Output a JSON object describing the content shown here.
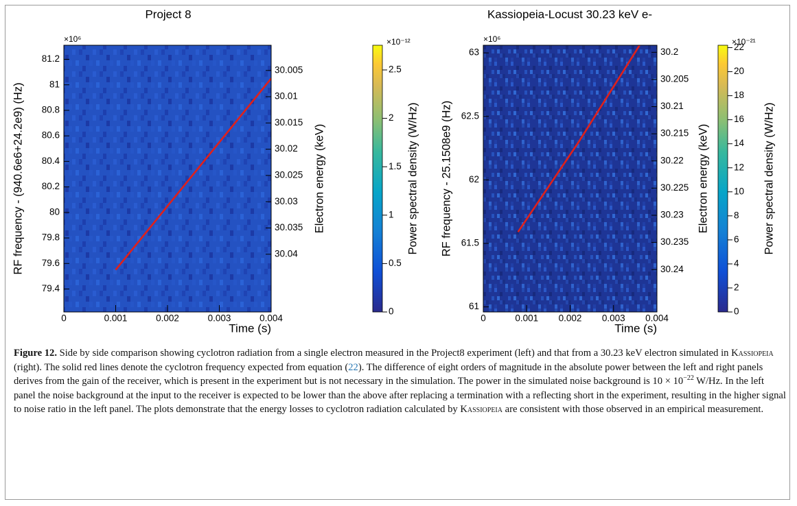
{
  "chart_data": [
    {
      "type": "heatmap",
      "title": "Project 8",
      "xlabel": "Time (s)",
      "ylabel": "RF frequency - (940.6e6+24.2e9) (Hz)",
      "ylabel_multiplier": "×10⁶",
      "y2label": "Electron energy (keV)",
      "colorbar_label": "Power spectral density (W/Hz)",
      "colorbar_multiplier": "×10⁻¹²",
      "xlim": [
        0,
        0.004
      ],
      "xticks": [
        0,
        0.001,
        0.002,
        0.003,
        0.004
      ],
      "ylim": [
        79.22,
        81.31
      ],
      "yticks": [
        79.4,
        79.6,
        79.8,
        80,
        80.2,
        80.4,
        80.6,
        80.8,
        81,
        81.2
      ],
      "y2lim": [
        30.051,
        30.0002
      ],
      "y2ticks": [
        30.005,
        30.01,
        30.015,
        30.02,
        30.025,
        30.03,
        30.035,
        30.04
      ],
      "zlim": [
        0,
        2.755
      ],
      "zticks": [
        0,
        0.5,
        1,
        1.5,
        2,
        2.5
      ],
      "series": [
        {
          "color": "#e0201b",
          "x": [
            0.001,
            0.004
          ],
          "values": [
            79.55,
            81.05
          ]
        }
      ]
    },
    {
      "type": "heatmap",
      "title": "Kassiopeia-Locust 30.23 keV e-",
      "xlabel": "Time (s)",
      "ylabel": "RF frequency - 25.1508e9 (Hz)",
      "ylabel_multiplier": "×10⁶",
      "y2label": "Electron energy (keV)",
      "colorbar_label": "Power spectral density (W/Hz)",
      "colorbar_multiplier": "×10⁻²¹",
      "xlim": [
        0,
        0.004
      ],
      "xticks": [
        0,
        0.001,
        0.002,
        0.003,
        0.004
      ],
      "ylim": [
        60.96,
        63.06
      ],
      "yticks": [
        61,
        61.5,
        62,
        62.5,
        63
      ],
      "y2lim": [
        30.2478,
        30.1987
      ],
      "y2ticks": [
        30.2,
        30.205,
        30.21,
        30.215,
        30.22,
        30.225,
        30.23,
        30.235,
        30.24
      ],
      "zlim": [
        0,
        22.2
      ],
      "zticks": [
        0,
        2,
        4,
        6,
        8,
        10,
        12,
        14,
        16,
        18,
        20,
        22
      ],
      "series": [
        {
          "color": "#e0201b",
          "x": [
            0.0008,
            0.0022,
            0.0036
          ],
          "values": [
            61.59,
            62.3,
            63.06
          ]
        }
      ]
    }
  ],
  "caption": {
    "parts": [
      "Figure 12.",
      " Side by side comparison showing cyclotron radiation from a single electron measured in the Project8 experiment (left) and that from a 30.23 keV electron simulated in ",
      "Kassiopeia",
      " (right). The solid red lines denote the cyclotron frequency expected from equation (",
      "22",
      "). The difference of eight orders of magnitude in the absolute power between the left and right panels derives from the gain of the receiver, which is present in the experiment but is not necessary in the simulation. The power in the simulated noise background is 10 × 10",
      "−22",
      " W/Hz. In the left panel the noise background at the input to the receiver is expected to be lower than the above after replacing a termination with a reflecting short in the experiment, resulting in the higher signal to noise ratio in the left panel. The plots demonstrate that the energy losses to cyclotron radiation calculated by ",
      "Kassiopeia",
      " are consistent with those observed in an empirical measurement."
    ]
  }
}
